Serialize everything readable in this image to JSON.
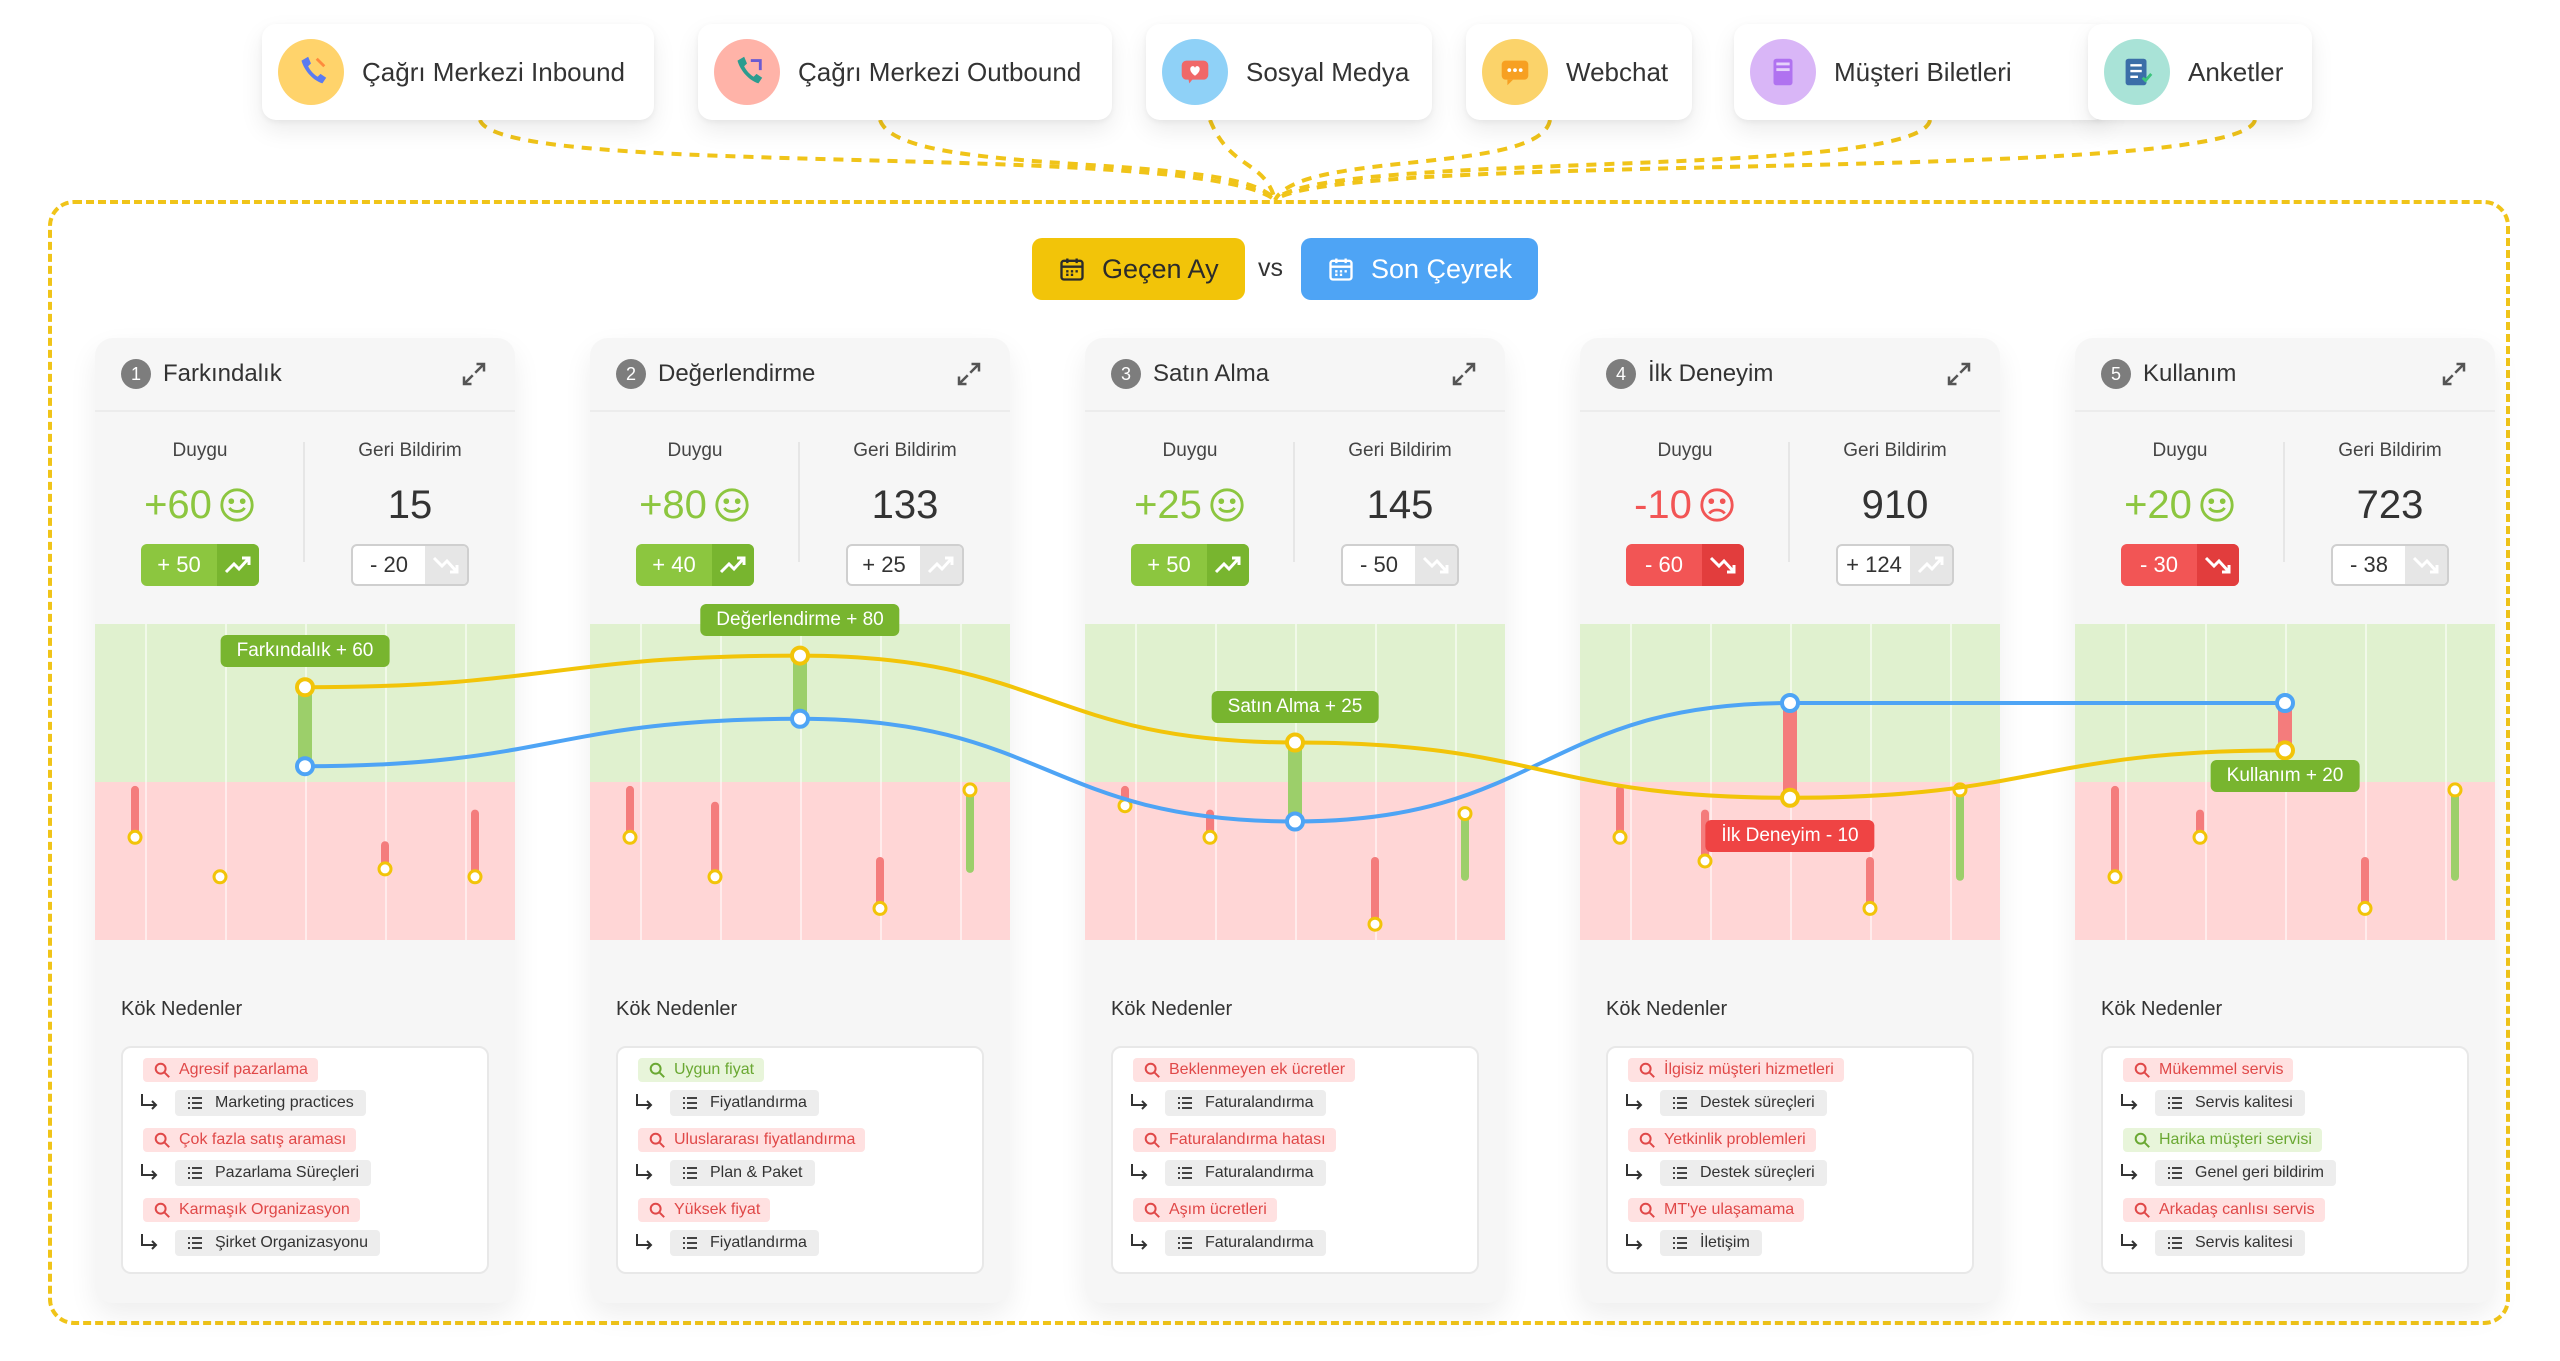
{
  "channels": [
    {
      "label": "Çağrı Merkezi Inbound",
      "icon": "phone-inbound-icon",
      "color": "#ffd36b"
    },
    {
      "label": "Çağrı Merkezi Outbound",
      "icon": "phone-outbound-icon",
      "color": "#ffb3a8"
    },
    {
      "label": "Sosyal Medya",
      "icon": "social-heart-icon",
      "color": "#8fd1f7"
    },
    {
      "label": "Webchat",
      "icon": "chat-bubble-icon",
      "color": "#fbd36a"
    },
    {
      "label": "Müşteri Biletleri",
      "icon": "ticket-icon",
      "color": "#d9b6f7"
    },
    {
      "label": "Anketler",
      "icon": "survey-list-icon",
      "color": "#a9e3d7"
    }
  ],
  "period": {
    "current": "Geçen Ay",
    "vs": "vs",
    "compare": "Son Çeyrek"
  },
  "colors": {
    "current_line": "#f2c409",
    "compare_line": "#4ea4f5",
    "positive": "#8cc63f",
    "negative": "#f25555"
  },
  "metric_labels": {
    "sentiment": "Duygu",
    "feedback": "Geri Bildirim"
  },
  "causes_title": "Kök Nedenler",
  "stages": [
    {
      "num": "1",
      "title": "Farkındalık",
      "sentiment": "+60",
      "mood": "happy",
      "sentiment_delta": "+ 50",
      "sentiment_trend": "up",
      "feedback": "15",
      "feedback_delta": "- 20",
      "feedback_trend": "down",
      "causes": [
        {
          "tag": "Agresif pazarlama",
          "tone": "negative",
          "sub": "Marketing practices"
        },
        {
          "tag": "Çok fazla satış araması",
          "tone": "negative",
          "sub": "Pazarlama Süreçleri"
        },
        {
          "tag": "Karmaşık Organizasyon",
          "tone": "negative",
          "sub": "Şirket Organizasyonu"
        }
      ]
    },
    {
      "num": "2",
      "title": "Değerlendirme",
      "sentiment": "+80",
      "mood": "happy",
      "sentiment_delta": "+ 40",
      "sentiment_trend": "up",
      "feedback": "133",
      "feedback_delta": "+ 25",
      "feedback_trend": "up",
      "causes": [
        {
          "tag": "Uygun fiyat",
          "tone": "positive",
          "sub": "Fiyatlandırma"
        },
        {
          "tag": "Uluslararası fiyatlandırma",
          "tone": "negative",
          "sub": "Plan & Paket"
        },
        {
          "tag": "Yüksek fiyat",
          "tone": "negative",
          "sub": "Fiyatlandırma"
        }
      ]
    },
    {
      "num": "3",
      "title": "Satın Alma",
      "sentiment": "+25",
      "mood": "happy",
      "sentiment_delta": "+ 50",
      "sentiment_trend": "up",
      "feedback": "145",
      "feedback_delta": "- 50",
      "feedback_trend": "down",
      "causes": [
        {
          "tag": "Beklenmeyen ek ücretler",
          "tone": "negative",
          "sub": "Faturalandırma"
        },
        {
          "tag": "Faturalandırma hatası",
          "tone": "negative",
          "sub": "Faturalandırma"
        },
        {
          "tag": "Aşım ücretleri",
          "tone": "negative",
          "sub": "Faturalandırma"
        }
      ]
    },
    {
      "num": "4",
      "title": "İlk Deneyim",
      "sentiment": "-10",
      "mood": "sad",
      "sentiment_delta": "- 60",
      "sentiment_trend": "down",
      "feedback": "910",
      "feedback_delta": "+ 124",
      "feedback_trend": "up",
      "causes": [
        {
          "tag": "İlgisiz müşteri hizmetleri",
          "tone": "negative",
          "sub": "Destek süreçleri"
        },
        {
          "tag": "Yetkinlik problemleri",
          "tone": "negative",
          "sub": "Destek süreçleri"
        },
        {
          "tag": "MT'ye ulaşamama",
          "tone": "negative",
          "sub": "İletişim"
        }
      ]
    },
    {
      "num": "5",
      "title": "Kullanım",
      "sentiment": "+20",
      "mood": "happy",
      "sentiment_delta": "- 30",
      "sentiment_trend": "down",
      "feedback": "723",
      "feedback_delta": "- 38",
      "feedback_trend": "down",
      "causes": [
        {
          "tag": "Mükemmel servis",
          "tone": "negative",
          "sub": "Servis kalitesi"
        },
        {
          "tag": "Harika müşteri servisi",
          "tone": "positive",
          "sub": "Genel geri bildirim"
        },
        {
          "tag": "Arkadaş canlısı servis",
          "tone": "negative",
          "sub": "Servis kalitesi"
        }
      ]
    }
  ],
  "chart_data": {
    "type": "line",
    "series": [
      {
        "name": "Geçen Ay",
        "values": [
          60,
          80,
          25,
          -10,
          20
        ]
      },
      {
        "name": "Son Çeyrek",
        "values": [
          10,
          40,
          -25,
          50,
          50
        ]
      }
    ],
    "labels": [
      "Farkındalık + 60",
      "Değerlendirme + 80",
      "Satın Alma + 25",
      "İlk Deneyim - 10",
      "Kullanım + 20"
    ],
    "ylim": [
      -100,
      100
    ],
    "touchpoints": [
      [
        {
          "a": -5,
          "b": -35
        },
        {
          "a": -60,
          "b": -60
        },
        {
          "a": -40,
          "b": -55
        },
        {
          "a": -20,
          "b": -60
        }
      ],
      [
        {
          "a": -5,
          "b": -35
        },
        {
          "a": -15,
          "b": -60
        },
        {
          "a": -50,
          "b": -80
        },
        {
          "a": -55,
          "b": -5
        }
      ],
      [
        {
          "a": -5,
          "b": -15
        },
        {
          "a": -20,
          "b": -35
        },
        {
          "a": -50,
          "b": -90
        },
        {
          "a": -60,
          "b": -20
        }
      ],
      [
        {
          "a": -5,
          "b": -35
        },
        {
          "a": -20,
          "b": -50
        },
        {
          "a": -50,
          "b": -80
        },
        {
          "a": -60,
          "b": -5
        }
      ],
      [
        {
          "a": -5,
          "b": -60
        },
        {
          "a": -20,
          "b": -35
        },
        {
          "a": -50,
          "b": -80
        },
        {
          "a": -60,
          "b": -5
        }
      ]
    ]
  }
}
